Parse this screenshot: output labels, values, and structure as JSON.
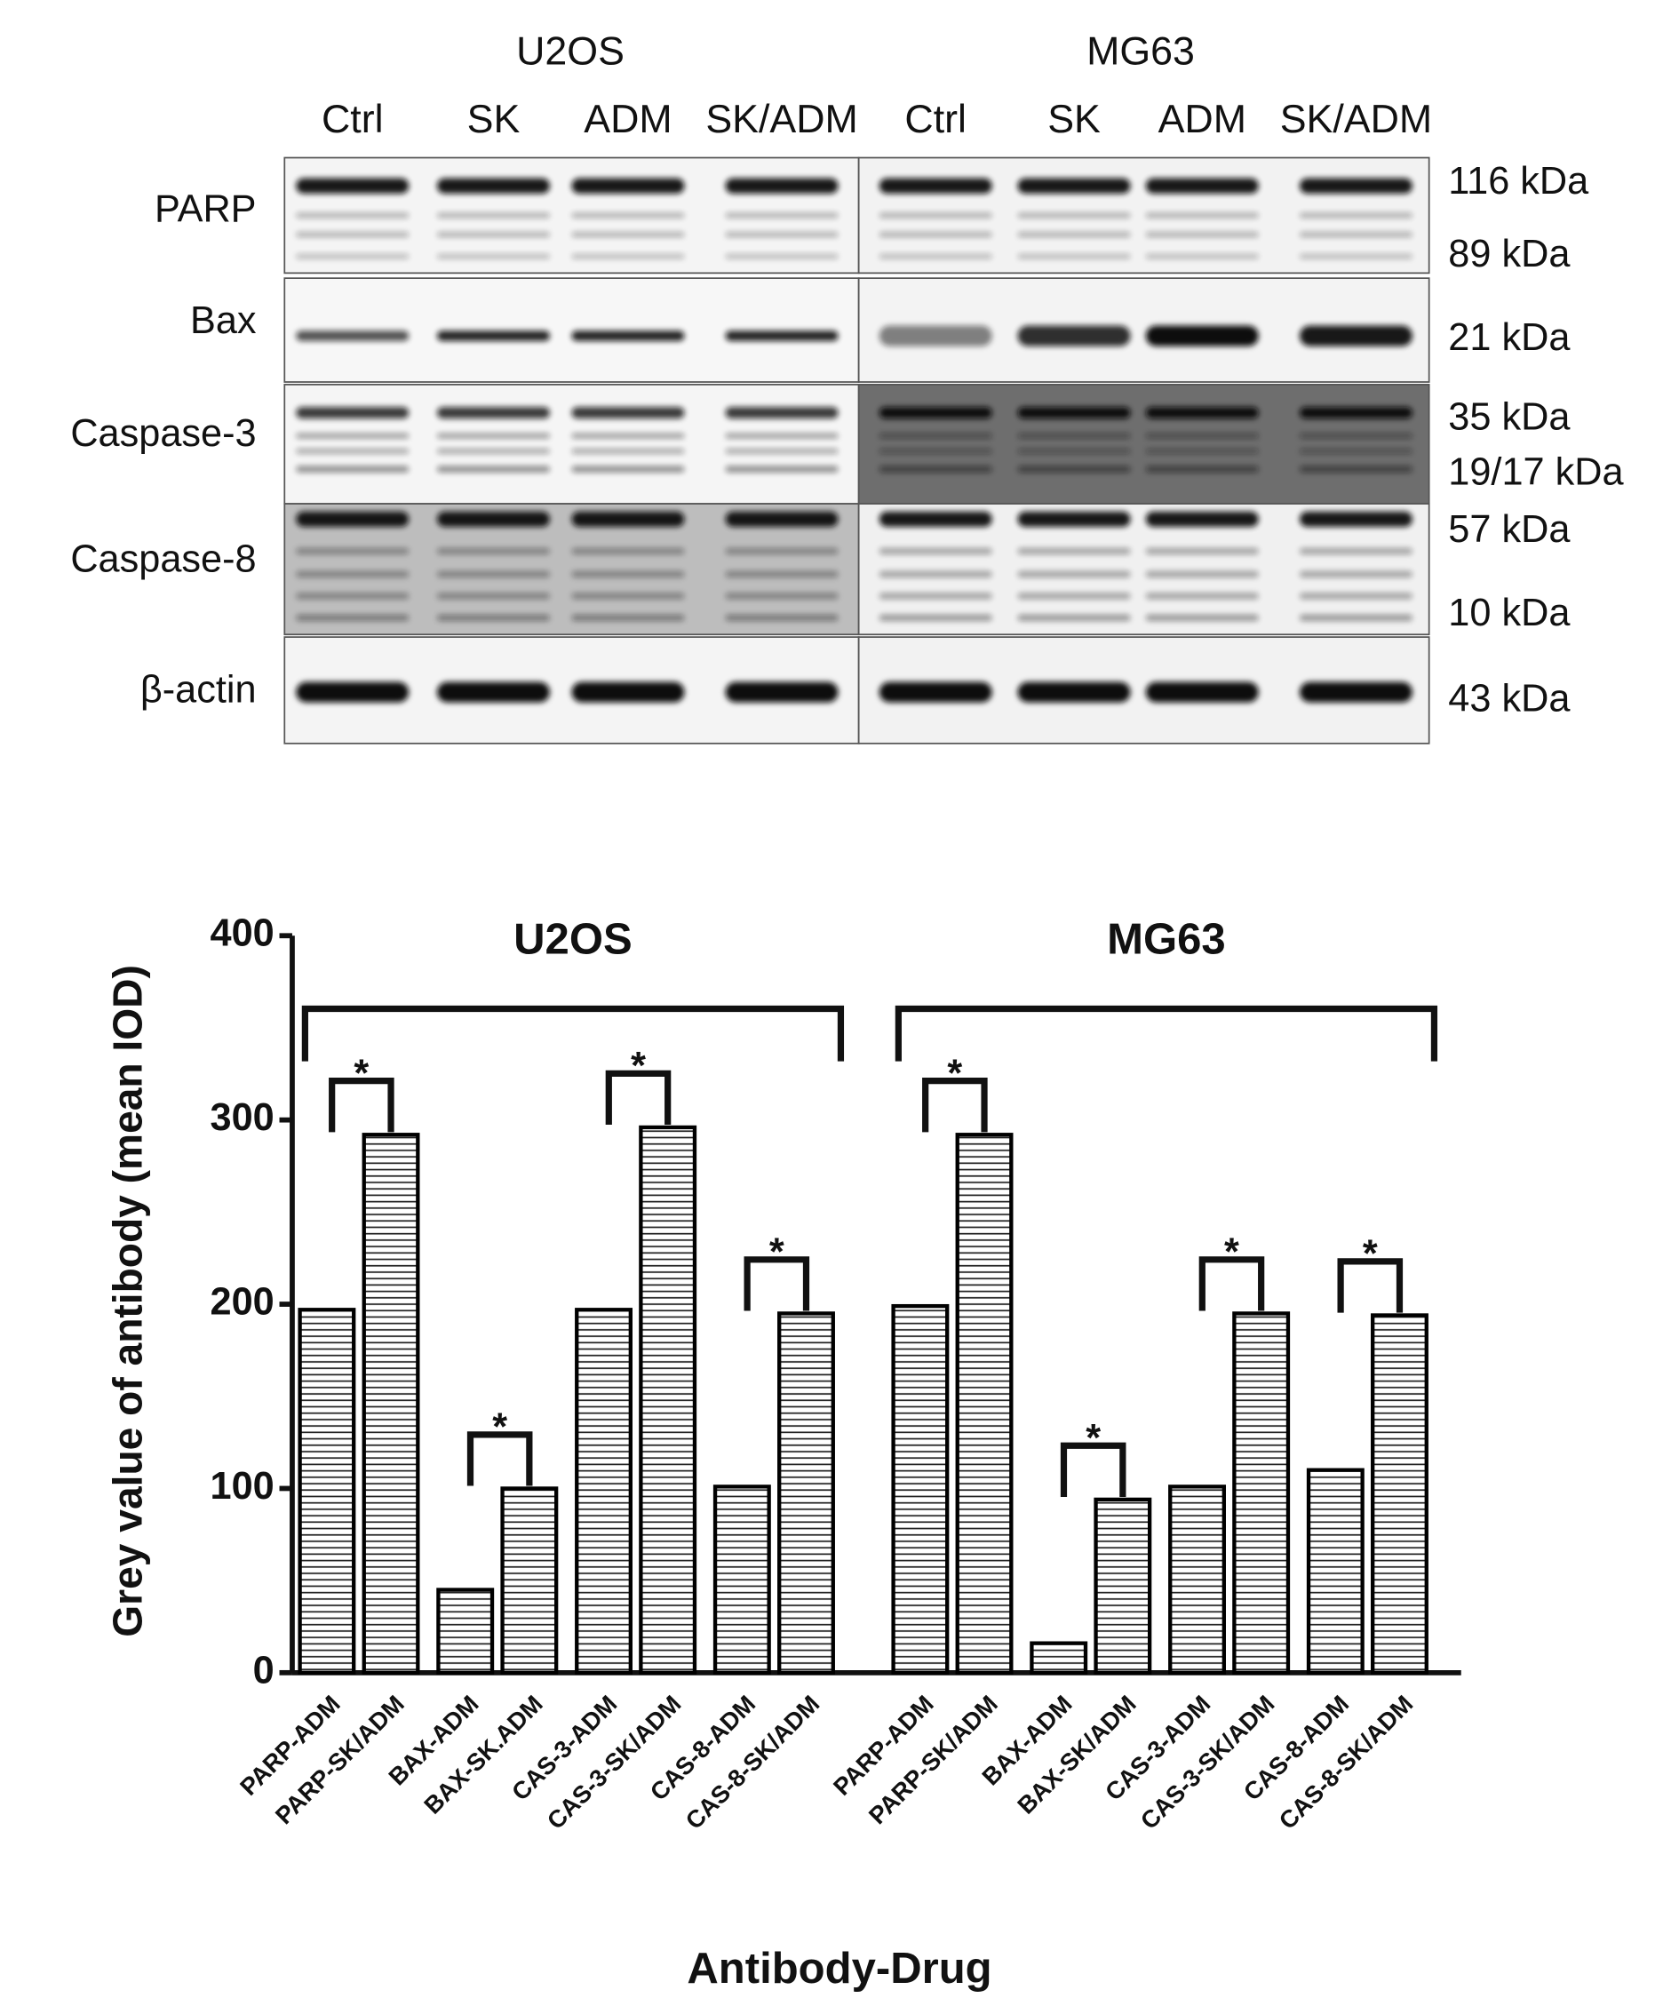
{
  "blot": {
    "cell_lines": [
      "U2OS",
      "MG63"
    ],
    "lanes": [
      "Ctrl",
      "SK",
      "ADM",
      "SK/ADM",
      "Ctrl",
      "SK",
      "ADM",
      "SK/ADM"
    ],
    "proteins": [
      "PARP",
      "Bax",
      "Caspase-3",
      "Caspase-8",
      "β-actin"
    ],
    "markers": [
      "116 kDa",
      "89 kDa",
      "21 kDa",
      "35 kDa",
      "19/17 kDa",
      "57 kDa",
      "10 kDa",
      "43 kDa"
    ]
  },
  "chart_data": {
    "type": "bar",
    "y_label": "Grey value of antibody (mean IOD)",
    "x_label": "Antibody-Drug",
    "group_labels": [
      "U2OS",
      "MG63"
    ],
    "categories": [
      "PARP-ADM",
      "PARP-SK/ADM",
      "BAX-ADM",
      "BAX-SK.ADM",
      "CAS-3-ADM",
      "CAS-3-SK/ADM",
      "CAS-8-ADM",
      "CAS-8-SK/ADM",
      "PARP-ADM",
      "PARP-SK/ADM",
      "BAX-ADM",
      "BAX-SK/ADM",
      "CAS-3-ADM",
      "CAS-3-SK/ADM",
      "CAS-8-ADM",
      "CAS-8-SK/ADM"
    ],
    "values": [
      197,
      292,
      45,
      100,
      197,
      296,
      101,
      195,
      199,
      292,
      16,
      94,
      101,
      195,
      110,
      194
    ],
    "annotations": [
      "*",
      "*",
      "*",
      "*",
      "*",
      "*",
      "*",
      "*"
    ],
    "color": "#000000",
    "ylim": [
      0,
      400
    ],
    "yticks": [
      0,
      100,
      200,
      300,
      400
    ]
  }
}
